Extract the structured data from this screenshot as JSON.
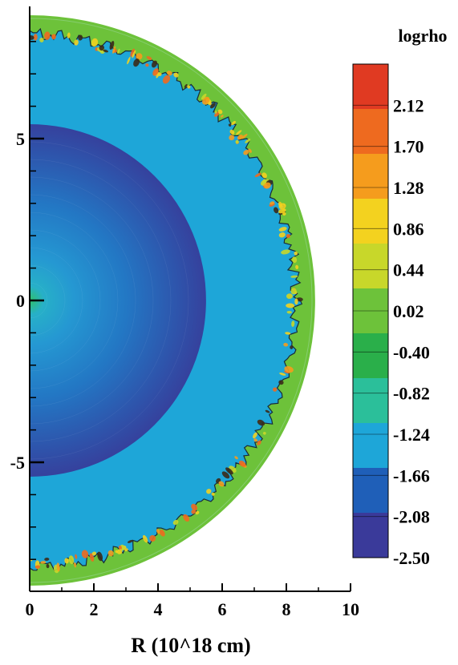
{
  "chart_data": {
    "type": "heatmap",
    "title": "",
    "xlabel": "R (10^18 cm)",
    "ylabel": "",
    "xlim": [
      0,
      10
    ],
    "ylim": [
      -9,
      9
    ],
    "x_ticks": [
      "0",
      "2",
      "4",
      "6",
      "8",
      "10"
    ],
    "y_ticks": [
      "5",
      "0",
      "-5"
    ],
    "colorbar": {
      "title": "logrho",
      "range": [
        -2.5,
        2.54
      ],
      "labels": [
        "2.12",
        "1.70",
        "1.28",
        "0.86",
        "0.44",
        "0.02",
        "-0.40",
        "-0.82",
        "-1.24",
        "-1.66",
        "-2.08",
        "-2.50"
      ],
      "colors": [
        "#3a3a9a",
        "#1f5fb8",
        "#1ea6d8",
        "#2bbf9a",
        "#2aaf4a",
        "#6dc23a",
        "#c8d72a",
        "#f3d21f",
        "#f59c1d",
        "#ee6a1f",
        "#e03a22"
      ]
    },
    "field": {
      "outer_shell_radius": 8.9,
      "contact_radius": 8.3,
      "inner_bubble_radius": 5.5,
      "shell_logrho": 0.02,
      "cavity_logrho": -1.45,
      "inner_edge_logrho": -2.4,
      "center_logrho": -0.4,
      "clump_logrho_max": 1.8
    }
  }
}
